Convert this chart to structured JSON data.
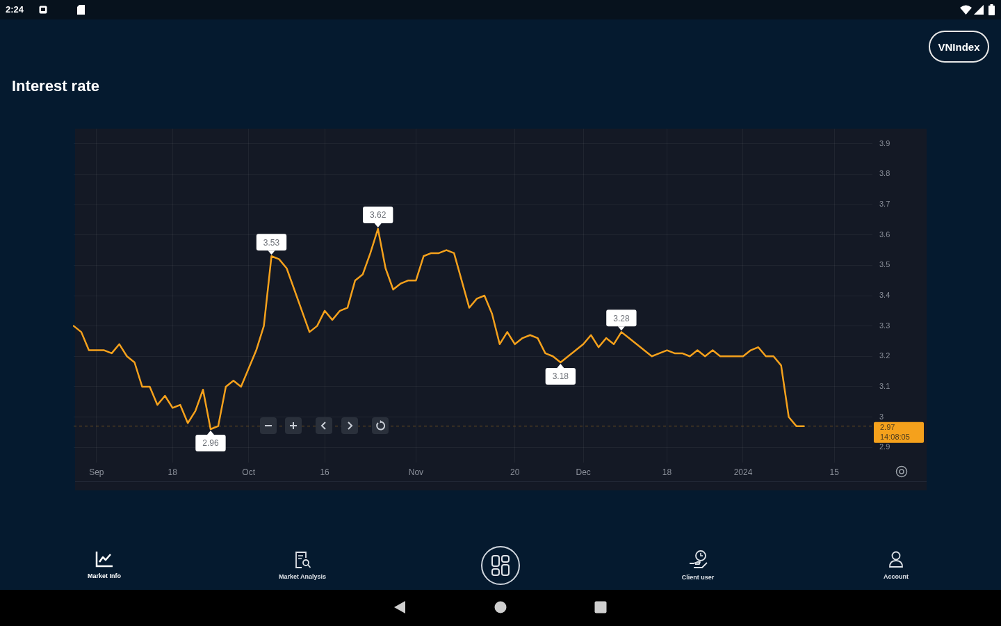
{
  "chart_data": {
    "type": "line",
    "title": "Interest rate",
    "categories": [
      null,
      null,
      null,
      "Sep",
      null,
      null,
      null,
      null,
      null,
      null,
      null,
      null,
      null,
      "18",
      null,
      null,
      null,
      null,
      null,
      null,
      null,
      null,
      null,
      "Oct",
      null,
      null,
      null,
      null,
      null,
      null,
      null,
      null,
      null,
      "16",
      null,
      null,
      null,
      null,
      null,
      null,
      null,
      null,
      null,
      null,
      null,
      "Nov",
      null,
      null,
      null,
      null,
      null,
      null,
      null,
      null,
      null,
      null,
      null,
      null,
      "20",
      null,
      null,
      null,
      null,
      null,
      null,
      null,
      null,
      "Dec",
      null,
      null,
      null,
      null,
      null,
      null,
      null,
      null,
      null,
      null,
      "18",
      null,
      null,
      null,
      null,
      null,
      null,
      null,
      null,
      null,
      "2024",
      null,
      null,
      null,
      null,
      null,
      null,
      null,
      null,
      null,
      null,
      null,
      "15",
      null,
      null,
      null,
      null,
      null
    ],
    "values": [
      3.3,
      3.28,
      3.22,
      3.22,
      3.22,
      3.21,
      3.24,
      3.2,
      3.18,
      3.1,
      3.1,
      3.04,
      3.07,
      3.03,
      3.04,
      2.98,
      3.02,
      3.09,
      2.96,
      2.97,
      3.1,
      3.12,
      3.1,
      3.16,
      3.22,
      3.3,
      3.53,
      3.52,
      3.49,
      3.42,
      3.35,
      3.28,
      3.3,
      3.35,
      3.32,
      3.35,
      3.36,
      3.45,
      3.47,
      3.54,
      3.62,
      3.49,
      3.42,
      3.44,
      3.45,
      3.45,
      3.53,
      3.54,
      3.54,
      3.55,
      3.54,
      3.45,
      3.36,
      3.39,
      3.4,
      3.34,
      3.24,
      3.28,
      3.24,
      3.26,
      3.27,
      3.26,
      3.21,
      3.2,
      3.18,
      3.2,
      3.22,
      3.24,
      3.27,
      3.23,
      3.26,
      3.24,
      3.28,
      3.26,
      3.24,
      3.22,
      3.2,
      3.21,
      3.22,
      3.21,
      3.21,
      3.2,
      3.22,
      3.2,
      3.22,
      3.2,
      3.2,
      3.2,
      3.2,
      3.22,
      3.23,
      3.2,
      3.2,
      3.17,
      3.0,
      2.97,
      2.97,
      null,
      null,
      null,
      null,
      null,
      null,
      null,
      null,
      null
    ],
    "value_labels": [
      null,
      null,
      null,
      null,
      null,
      null,
      null,
      null,
      null,
      null,
      null,
      null,
      null,
      null,
      null,
      null,
      null,
      null,
      "2.96",
      null,
      null,
      null,
      null,
      null,
      null,
      null,
      "3.53",
      null,
      null,
      null,
      null,
      null,
      null,
      null,
      null,
      null,
      null,
      null,
      null,
      null,
      "3.62",
      null,
      null,
      null,
      null,
      null,
      null,
      null,
      null,
      null,
      null,
      null,
      null,
      null,
      null,
      null,
      null,
      null,
      null,
      null,
      null,
      null,
      null,
      null,
      "3.18",
      null,
      null,
      null,
      null,
      null,
      null,
      null,
      "3.28",
      null,
      null,
      null,
      null,
      null,
      null,
      null,
      null,
      null,
      null,
      null,
      null,
      null,
      null,
      null,
      null,
      null,
      null,
      null,
      null,
      null,
      null,
      null,
      null,
      null,
      null,
      null,
      null,
      null,
      null,
      null,
      null,
      null
    ],
    "color": "#f5a11c",
    "ylim": [
      2.85,
      3.95
    ],
    "yticks": [
      2.9,
      3,
      3.1,
      3.2,
      3.3,
      3.4,
      3.5,
      3.6,
      3.7,
      3.8,
      3.9
    ],
    "grid": true,
    "marker": "none",
    "ref_lines": [
      {
        "axis": "y",
        "value": 2.97,
        "label": "2.97",
        "color": "#f5a11c",
        "line_style": "dashed"
      }
    ],
    "annotations": [
      "VNIndex",
      "14:08:05",
      "Market Info",
      "Market Analysis",
      "Client user",
      "Account",
      "2:24"
    ]
  }
}
